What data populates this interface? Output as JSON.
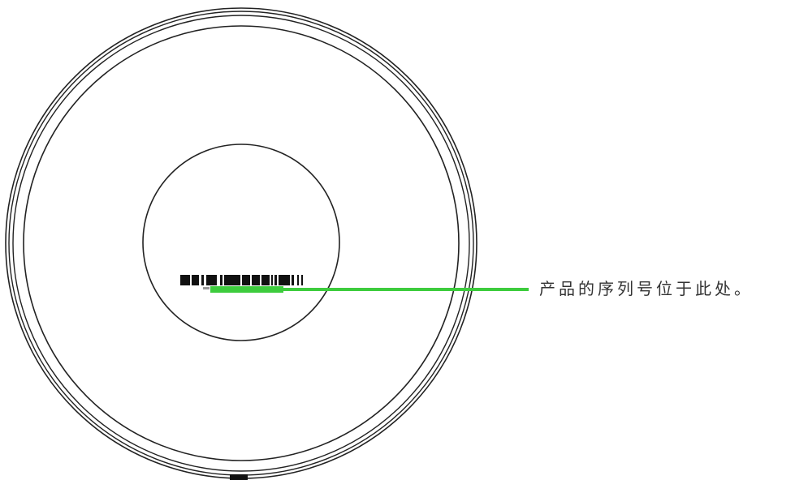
{
  "callout": {
    "text": "产品的序列号位于此处。"
  },
  "colors": {
    "outline": "#222222",
    "leader_line": "#3dcc3d",
    "text": "#333333",
    "background": "#ffffff"
  }
}
